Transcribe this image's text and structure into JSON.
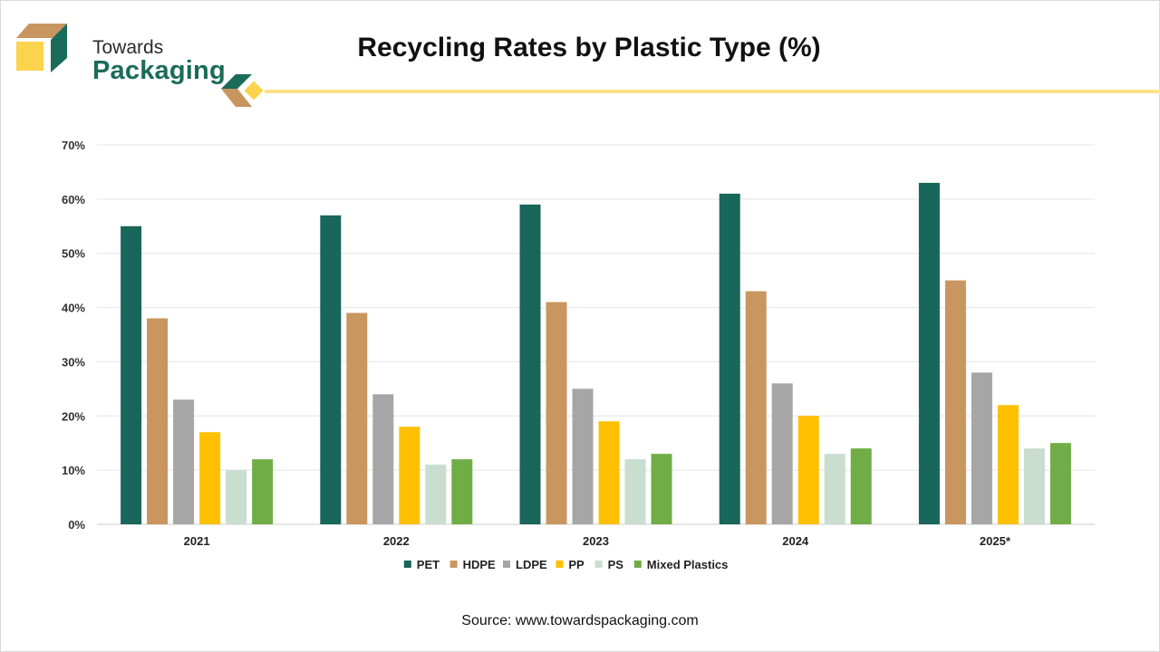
{
  "brand": {
    "line1": "Towards",
    "line2": "Packaging",
    "colors": {
      "dark": "#1b6b5a",
      "tan": "#c8955f",
      "yellow": "#fcd34d"
    }
  },
  "chart_data": {
    "type": "bar",
    "title": "Recycling Rates by Plastic Type (%)",
    "xlabel": "",
    "ylabel": "",
    "categories": [
      "2021",
      "2022",
      "2023",
      "2024",
      "2025*"
    ],
    "ylim": [
      0,
      70
    ],
    "yticks": [
      0,
      10,
      20,
      30,
      40,
      50,
      60,
      70
    ],
    "ytick_labels": [
      "0%",
      "10%",
      "20%",
      "30%",
      "40%",
      "50%",
      "60%",
      "70%"
    ],
    "grid": true,
    "legend_position": "bottom",
    "series": [
      {
        "name": "PET",
        "color": "#19665a",
        "values": [
          55,
          57,
          59,
          61,
          63
        ]
      },
      {
        "name": "HDPE",
        "color": "#c9965f",
        "values": [
          38,
          39,
          41,
          43,
          45
        ]
      },
      {
        "name": "LDPE",
        "color": "#a6a6a6",
        "values": [
          23,
          24,
          25,
          26,
          28
        ]
      },
      {
        "name": "PP",
        "color": "#ffc000",
        "values": [
          17,
          18,
          19,
          20,
          22
        ]
      },
      {
        "name": "PS",
        "color": "#c9ddd0",
        "values": [
          10,
          11,
          12,
          13,
          14
        ]
      },
      {
        "name": "Mixed Plastics",
        "color": "#70ad47",
        "values": [
          12,
          12,
          13,
          14,
          15
        ]
      }
    ]
  },
  "footer": {
    "source": "Source: www.towardspackaging.com"
  }
}
